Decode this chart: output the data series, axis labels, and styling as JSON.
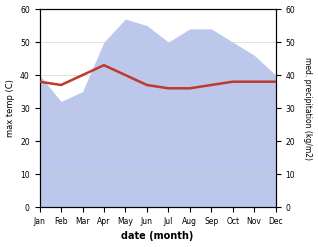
{
  "months": [
    "Jan",
    "Feb",
    "Mar",
    "Apr",
    "May",
    "Jun",
    "Jul",
    "Aug",
    "Sep",
    "Oct",
    "Nov",
    "Dec"
  ],
  "temperature": [
    38,
    37,
    40,
    43,
    40,
    37,
    36,
    36,
    37,
    38,
    38,
    38
  ],
  "precipitation": [
    40,
    32,
    35,
    50,
    57,
    55,
    50,
    54,
    54,
    50,
    46,
    40
  ],
  "temp_color": "#c0392b",
  "precip_fill_color": "#b0bfe8",
  "precip_fill_alpha": 0.85,
  "xlabel": "date (month)",
  "ylabel_left": "max temp (C)",
  "ylabel_right": "med. precipitation (kg/m2)",
  "ylim_left": [
    0,
    60
  ],
  "ylim_right": [
    0,
    60
  ],
  "yticks_left": [
    0,
    10,
    20,
    30,
    40,
    50,
    60
  ],
  "yticks_right": [
    0,
    10,
    20,
    30,
    40,
    50,
    60
  ],
  "bg_color": "#ffffff",
  "fig_width": 3.18,
  "fig_height": 2.47,
  "dpi": 100
}
